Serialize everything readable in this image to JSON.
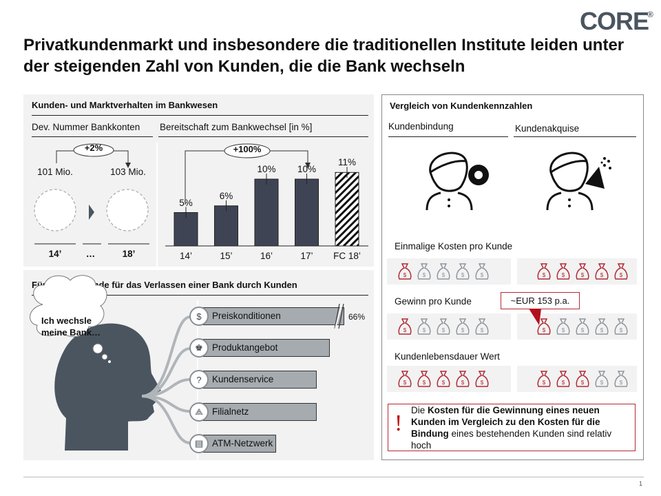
{
  "logo": {
    "text": "CORE",
    "mark": "®"
  },
  "title": "Privatkundenmarkt und insbesondere die traditionellen Institute leiden unter der steigenden Zahl von Kunden, die die Bank wechseln",
  "market": {
    "heading": "Kunden- und Marktverhalten im Bankwesen",
    "accounts": {
      "subheading": "Dev. Nummer Bankkonten",
      "change": "+2%",
      "from_value": "101 Mio.",
      "to_value": "103 Mio.",
      "from_year": "14’",
      "ellipsis": "…",
      "to_year": "18’"
    },
    "switch": {
      "subheading": "Bereitschaft zum Bankwechsel [in %]",
      "change": "+100%"
    }
  },
  "chart_data": {
    "type": "bar",
    "categories": [
      "14’",
      "15’",
      "16’",
      "17’",
      "FC 18’"
    ],
    "values": [
      5,
      6,
      10,
      10,
      11
    ],
    "labels": [
      "5%",
      "6%",
      "10%",
      "10%",
      "11%"
    ],
    "forecast_index": 4,
    "ylim": [
      0,
      11.5
    ],
    "bar_color": "#3f4455",
    "title": "",
    "xlabel": "",
    "ylabel": ""
  },
  "reasons": {
    "heading": "Fünf Hauptgründe für das Verlassen einer Bank durch Kunden",
    "thought": "Ich wechsle meine Bank…",
    "items": [
      {
        "label": "Preiskonditionen",
        "icon": "banknote-icon",
        "value": "66%",
        "level": 1.0
      },
      {
        "label": "Produktangebot",
        "icon": "chess-king-icon",
        "level": 0.9
      },
      {
        "label": "Kundenservice",
        "icon": "head-question-icon",
        "level": 0.81
      },
      {
        "label": "Filialnetz",
        "icon": "network-icon",
        "level": 0.81
      },
      {
        "label": "ATM-Netzwerk",
        "icon": "atm-icon",
        "level": 0.53
      }
    ]
  },
  "compare": {
    "heading": "Vergleich von Kundenkennzahlen",
    "col1": "Kundenbindung",
    "col2": "Kundenakquise",
    "rows": [
      {
        "label": "Einmalige Kosten pro Kunde",
        "retention_red": 1,
        "acquisition_red": 5
      },
      {
        "label": "Gewinn pro Kunde",
        "retention_red": 1,
        "acquisition_red": 1,
        "callout": "~EUR 153 p.a."
      },
      {
        "label": "Kundenlebensdauer Wert",
        "retention_red": 5,
        "acquisition_red": 3
      }
    ],
    "note": {
      "mark": "!",
      "p1": "Die ",
      "b1": "Kosten für die Gewinnung eines neuen Kunden im Vergleich zu den Kosten für die Bindung",
      "p2": " eines bestehenden Kunden sind relativ hoch"
    },
    "colors": {
      "red": "#b22a35",
      "gray": "#8f969c"
    }
  },
  "page_number": "1"
}
